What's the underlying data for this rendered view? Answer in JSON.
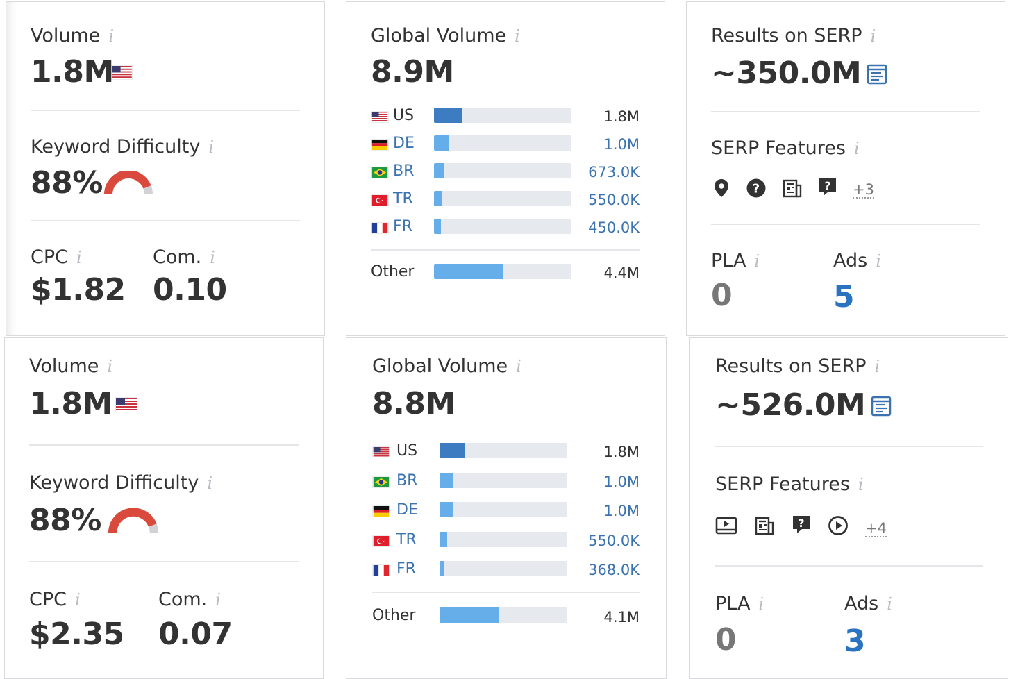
{
  "panels": [
    {
      "volume": {
        "label": "Volume",
        "value": "1.8M",
        "flag_icon": "us-flag-icon"
      },
      "kd": {
        "label": "Keyword Difficulty",
        "value": "88%",
        "level": 0.88,
        "gauge_color": "#d94a3c"
      },
      "cpc": {
        "label": "CPC",
        "value": "$1.82"
      },
      "com": {
        "label": "Com.",
        "value": "0.10"
      },
      "global": {
        "label": "Global Volume",
        "value": "8.9M",
        "countries": [
          {
            "code": "US",
            "value": "1.8M",
            "share": 0.2
          },
          {
            "code": "DE",
            "value": "1.0M",
            "share": 0.11
          },
          {
            "code": "BR",
            "value": "673.0K",
            "share": 0.075
          },
          {
            "code": "TR",
            "value": "550.0K",
            "share": 0.062
          },
          {
            "code": "FR",
            "value": "450.0K",
            "share": 0.05
          }
        ],
        "other": {
          "label": "Other",
          "value": "4.4M",
          "share": 0.5
        }
      },
      "serp": {
        "results_label": "Results on SERP",
        "results_value": "~350.0M",
        "features_label": "SERP Features",
        "features": [
          "location-pin-icon",
          "question-circle-icon",
          "news-icon",
          "question-bubble-icon"
        ],
        "more": "+3",
        "pla_label": "PLA",
        "pla_value": "0",
        "ads_label": "Ads",
        "ads_value": "5"
      }
    },
    {
      "volume": {
        "label": "Volume",
        "value": "1.8M",
        "flag_icon": "us-flag-icon"
      },
      "kd": {
        "label": "Keyword Difficulty",
        "value": "88%",
        "level": 0.88,
        "gauge_color": "#d94a3c"
      },
      "cpc": {
        "label": "CPC",
        "value": "$2.35"
      },
      "com": {
        "label": "Com.",
        "value": "0.07"
      },
      "global": {
        "label": "Global Volume",
        "value": "8.8M",
        "countries": [
          {
            "code": "US",
            "value": "1.8M",
            "share": 0.2
          },
          {
            "code": "BR",
            "value": "1.0M",
            "share": 0.11
          },
          {
            "code": "DE",
            "value": "1.0M",
            "share": 0.11
          },
          {
            "code": "TR",
            "value": "550.0K",
            "share": 0.06
          },
          {
            "code": "FR",
            "value": "368.0K",
            "share": 0.04
          }
        ],
        "other": {
          "label": "Other",
          "value": "4.1M",
          "share": 0.46
        }
      },
      "serp": {
        "results_label": "Results on SERP",
        "results_value": "~526.0M",
        "features_label": "SERP Features",
        "features": [
          "video-icon",
          "news-icon",
          "question-bubble-icon",
          "play-circle-icon"
        ],
        "more": "+4",
        "pla_label": "PLA",
        "pla_value": "0",
        "ads_label": "Ads",
        "ads_value": "3"
      }
    }
  ]
}
